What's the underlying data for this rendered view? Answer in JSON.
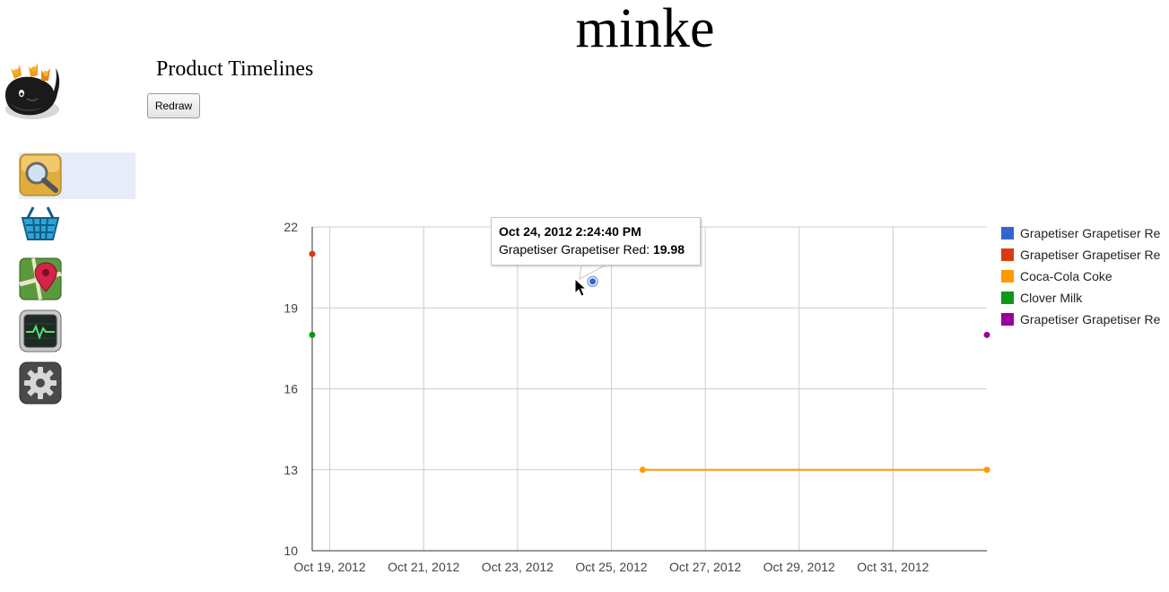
{
  "site": {
    "title": "minke"
  },
  "page": {
    "heading": "Product Timelines"
  },
  "toolbar": {
    "redraw_label": "Redraw"
  },
  "sidebar": {
    "items": [
      {
        "icon": "search-icon",
        "active": true
      },
      {
        "icon": "basket-icon",
        "active": false
      },
      {
        "icon": "map-pin-icon",
        "active": false
      },
      {
        "icon": "activity-monitor-icon",
        "active": false
      },
      {
        "icon": "gear-icon",
        "active": false
      }
    ]
  },
  "tooltip": {
    "title": "Oct 24, 2012 2:24:40 PM",
    "series": "Grapetiser Grapetiser Red:",
    "value": "19.98"
  },
  "chart_data": {
    "type": "line",
    "title": "",
    "xlabel": "",
    "ylabel": "",
    "x_type": "date",
    "xlim": [
      "2012-10-18T15:00",
      "2012-11-02T00:00"
    ],
    "ylim": [
      10,
      22
    ],
    "y_ticks": [
      "22",
      "19",
      "16",
      "13",
      "10"
    ],
    "x_ticks": [
      {
        "date": "2012-10-19T00:00",
        "label": "Oct 19, 2012"
      },
      {
        "date": "2012-10-21T00:00",
        "label": "Oct 21, 2012"
      },
      {
        "date": "2012-10-23T00:00",
        "label": "Oct 23, 2012"
      },
      {
        "date": "2012-10-25T00:00",
        "label": "Oct 25, 2012"
      },
      {
        "date": "2012-10-27T00:00",
        "label": "Oct 27, 2012"
      },
      {
        "date": "2012-10-29T00:00",
        "label": "Oct 29, 2012"
      },
      {
        "date": "2012-10-31T00:00",
        "label": "Oct 31, 2012"
      }
    ],
    "grid": true,
    "legend_position": "right",
    "series": [
      {
        "name": "Grapetiser Grapetiser Re",
        "color": "#3366cc",
        "points": [
          {
            "x": "2012-10-24T14:24:40",
            "y": 19.98
          }
        ]
      },
      {
        "name": "Grapetiser Grapetiser Re",
        "color": "#dc3912",
        "points": [
          {
            "x": "2012-10-18T15:00",
            "y": 21
          }
        ]
      },
      {
        "name": "Coca-Cola Coke",
        "color": "#ff9900",
        "points": [
          {
            "x": "2012-10-25T16:00",
            "y": 13
          },
          {
            "x": "2012-11-02T00:00",
            "y": 13
          }
        ]
      },
      {
        "name": "Clover Milk",
        "color": "#109618",
        "points": [
          {
            "x": "2012-10-18T15:00",
            "y": 18
          }
        ]
      },
      {
        "name": "Grapetiser Grapetiser Re",
        "color": "#990099",
        "points": [
          {
            "x": "2012-11-02T00:00",
            "y": 18
          }
        ]
      }
    ]
  }
}
